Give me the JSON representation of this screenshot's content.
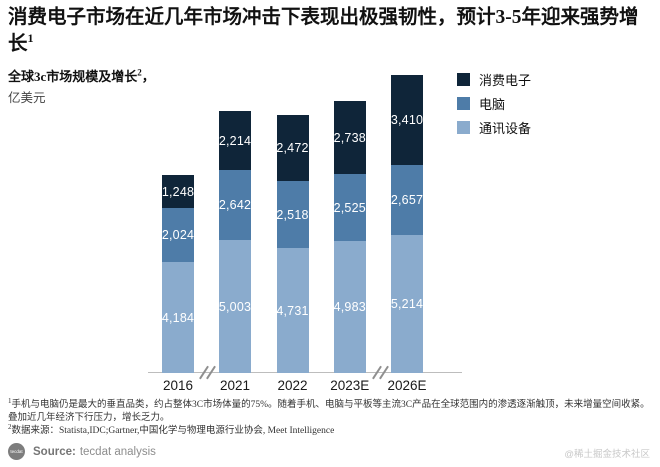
{
  "title": {
    "text": "消费电子市场在近几年市场冲击下表现出极强韧性，预计3-5年迎来强势增长",
    "sup": "1"
  },
  "subtitle": {
    "line1": "全球3c市场规模及增长",
    "line1_sup": "2",
    "line1_tail": "，",
    "line2": "亿美元"
  },
  "legend": [
    {
      "label": "消费电子",
      "color": "#0f2539"
    },
    {
      "label": "电脑",
      "color": "#4e7ca8"
    },
    {
      "label": "通讯设备",
      "color": "#8aabcd"
    }
  ],
  "chart_data": {
    "type": "bar",
    "stacked": true,
    "title": "全球3c市场规模及增长",
    "ylabel": "亿美元",
    "categories": [
      "2016",
      "2021",
      "2022",
      "2023E",
      "2026E"
    ],
    "series": [
      {
        "name": "消费电子",
        "color": "#0f2539",
        "values": [
          1248,
          2214,
          2472,
          2738,
          3410
        ]
      },
      {
        "name": "电脑",
        "color": "#4e7ca8",
        "values": [
          2024,
          2642,
          2518,
          2525,
          2657
        ]
      },
      {
        "name": "通讯设备",
        "color": "#8aabcd",
        "values": [
          4184,
          5003,
          4731,
          4983,
          5214
        ]
      }
    ],
    "stack_order_bottom_to_top": [
      "通讯设备",
      "电脑",
      "消费电子"
    ],
    "totals": [
      7456,
      9859,
      9721,
      10246,
      11281
    ],
    "value_labels_shown": true,
    "grid": false,
    "legend_position": "top-right",
    "axis_breaks_between": [
      [
        "2016",
        "2021"
      ],
      [
        "2023E",
        "2026E"
      ]
    ]
  },
  "footnotes": [
    {
      "sup": "1",
      "text": "手机与电脑仍是最大的垂直品类，约占整体3C市场体量的75%。随着手机、电脑与平板等主流3C产品在全球范围内的渗透逐渐触顶，未来增量空间收紧。叠加近几年经济下行压力，增长乏力。"
    },
    {
      "sup": "2",
      "text": "数据来源：Statista,IDC;Gartner,中国化学与物理电源行业协会, Meet Intelligence"
    }
  ],
  "source": {
    "logo_text": "tecdat",
    "label": "Source:",
    "text": "tecdat analysis"
  },
  "watermark": "@稀土掘金技术社区"
}
